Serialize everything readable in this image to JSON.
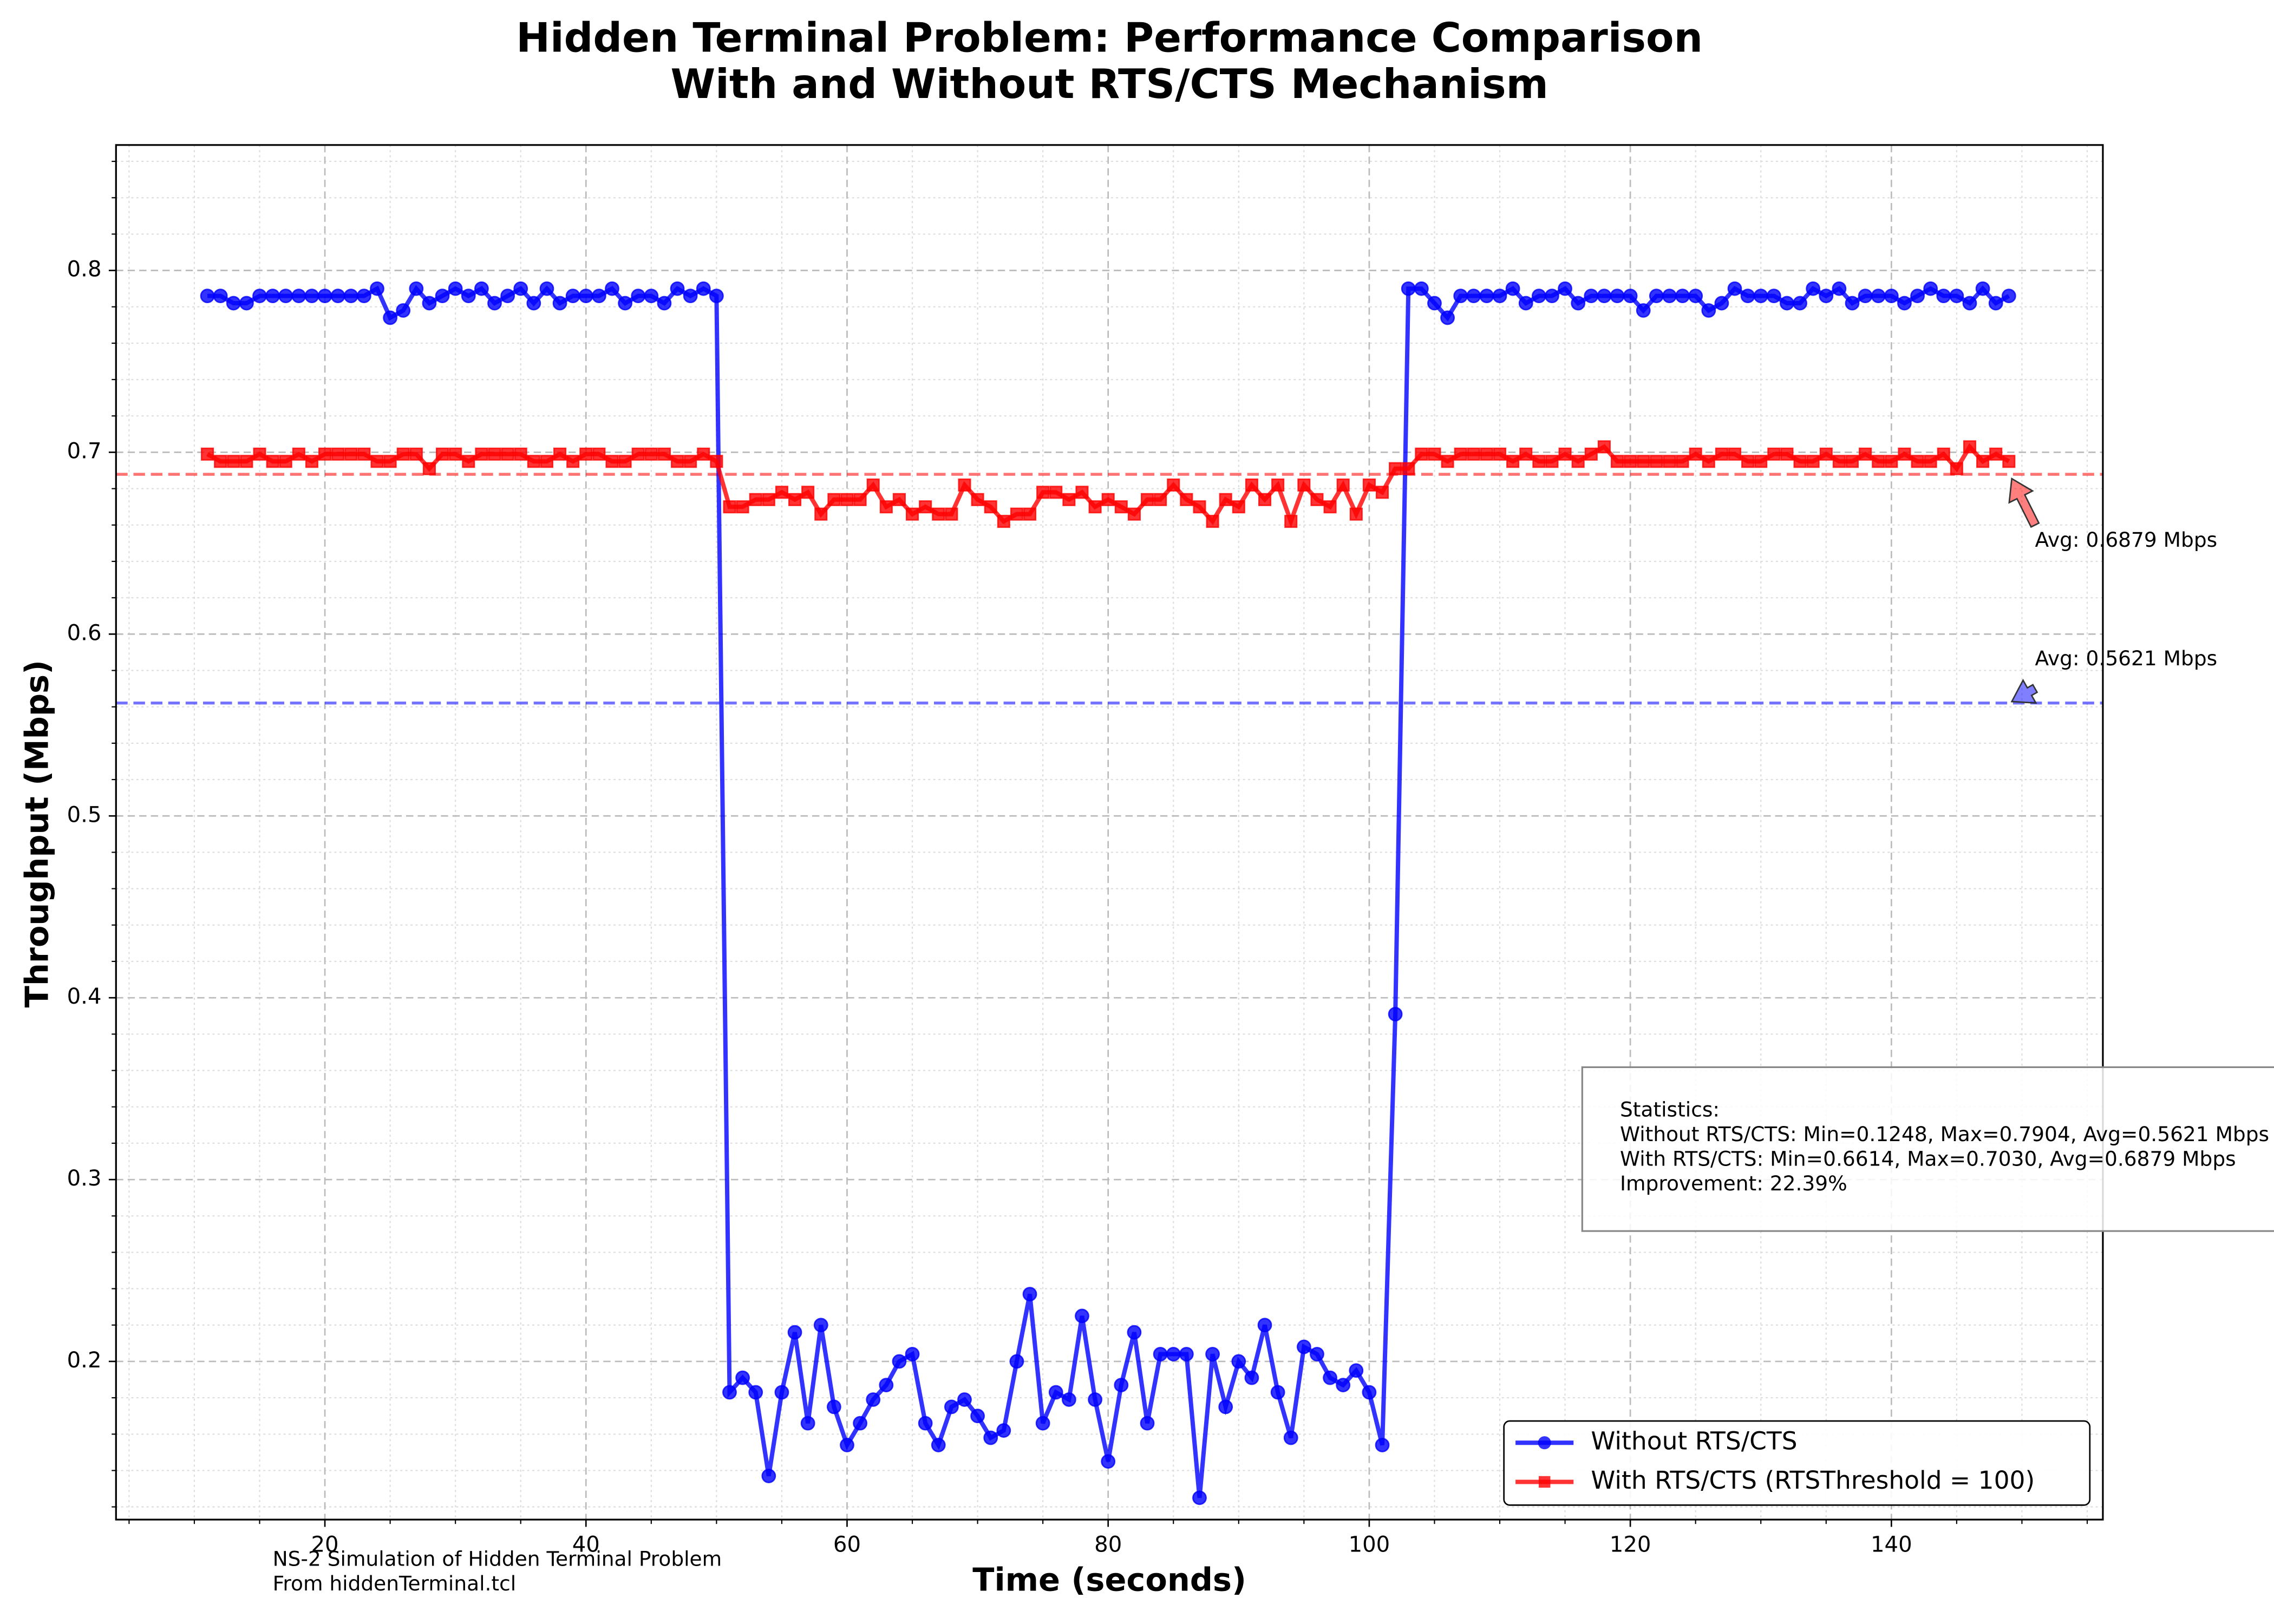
{
  "chart_data": {
    "type": "line",
    "title": [
      "Hidden Terminal Problem: Performance Comparison",
      "With and Without RTS/CTS Mechanism"
    ],
    "xlabel": "Time (seconds)",
    "ylabel": "Throughput (Mbps)",
    "xlim": [
      4.0,
      156.2
    ],
    "ylim": [
      0.113,
      0.869
    ],
    "xticks": [
      20,
      40,
      60,
      80,
      100,
      120,
      140
    ],
    "yticks": [
      0.2,
      0.3,
      0.4,
      0.5,
      0.6,
      0.7,
      0.8
    ],
    "xminorticks": [
      5,
      10,
      15,
      25,
      30,
      35,
      45,
      50,
      55,
      65,
      70,
      75,
      85,
      90,
      95,
      105,
      110,
      115,
      125,
      130,
      135,
      145,
      150,
      155
    ],
    "yminorticks": [
      0.12,
      0.14,
      0.16,
      0.18,
      0.22,
      0.24,
      0.26,
      0.28,
      0.32,
      0.34,
      0.36,
      0.38,
      0.42,
      0.44,
      0.46,
      0.48,
      0.52,
      0.54,
      0.56,
      0.58,
      0.62,
      0.64,
      0.66,
      0.68,
      0.72,
      0.74,
      0.76,
      0.78,
      0.82,
      0.84,
      0.86
    ],
    "grid": true,
    "legend": "lower right",
    "x": [
      11,
      12,
      13,
      14,
      15,
      16,
      17,
      18,
      19,
      20,
      21,
      22,
      23,
      24,
      25,
      26,
      27,
      28,
      29,
      30,
      31,
      32,
      33,
      34,
      35,
      36,
      37,
      38,
      39,
      40,
      41,
      42,
      43,
      44,
      45,
      46,
      47,
      48,
      49,
      50,
      51,
      52,
      53,
      54,
      55,
      56,
      57,
      58,
      59,
      60,
      61,
      62,
      63,
      64,
      65,
      66,
      67,
      68,
      69,
      70,
      71,
      72,
      73,
      74,
      75,
      76,
      77,
      78,
      79,
      80,
      81,
      82,
      83,
      84,
      85,
      86,
      87,
      88,
      89,
      90,
      91,
      92,
      93,
      94,
      95,
      96,
      97,
      98,
      99,
      100,
      101,
      102,
      103,
      104,
      105,
      106,
      107,
      108,
      109,
      110,
      111,
      112,
      113,
      114,
      115,
      116,
      117,
      118,
      119,
      120,
      121,
      122,
      123,
      124,
      125,
      126,
      127,
      128,
      129,
      130,
      131,
      132,
      133,
      134,
      135,
      136,
      137,
      138,
      139,
      140,
      141,
      142,
      143,
      144,
      145,
      146,
      147,
      148,
      149
    ],
    "series": [
      {
        "name": "Without RTS/CTS",
        "color": "#0000ff",
        "marker": "circle",
        "values": [
          0.786,
          0.786,
          0.782,
          0.782,
          0.786,
          0.786,
          0.786,
          0.786,
          0.786,
          0.786,
          0.786,
          0.786,
          0.786,
          0.79,
          0.774,
          0.778,
          0.79,
          0.782,
          0.786,
          0.79,
          0.786,
          0.79,
          0.782,
          0.786,
          0.79,
          0.782,
          0.79,
          0.782,
          0.786,
          0.786,
          0.786,
          0.79,
          0.782,
          0.786,
          0.786,
          0.782,
          0.79,
          0.786,
          0.79,
          0.786,
          0.183,
          0.191,
          0.183,
          0.137,
          0.183,
          0.216,
          0.166,
          0.22,
          0.175,
          0.154,
          0.166,
          0.179,
          0.187,
          0.2,
          0.204,
          0.166,
          0.154,
          0.175,
          0.179,
          0.17,
          0.158,
          0.162,
          0.2,
          0.237,
          0.166,
          0.183,
          0.179,
          0.225,
          0.179,
          0.145,
          0.187,
          0.216,
          0.166,
          0.204,
          0.204,
          0.204,
          0.125,
          0.204,
          0.175,
          0.2,
          0.191,
          0.22,
          0.183,
          0.158,
          0.208,
          0.204,
          0.191,
          0.187,
          0.195,
          0.183,
          0.154,
          0.391,
          0.79,
          0.79,
          0.782,
          0.774,
          0.786,
          0.786,
          0.786,
          0.786,
          0.79,
          0.782,
          0.786,
          0.786,
          0.79,
          0.782,
          0.786,
          0.786,
          0.786,
          0.786,
          0.778,
          0.786,
          0.786,
          0.786,
          0.786,
          0.778,
          0.782,
          0.79,
          0.786,
          0.786,
          0.786,
          0.782,
          0.782,
          0.79,
          0.786,
          0.79,
          0.782,
          0.786,
          0.786,
          0.786,
          0.782,
          0.786,
          0.79,
          0.786,
          0.786,
          0.782,
          0.79,
          0.782,
          0.786
        ]
      },
      {
        "name": "With RTS/CTS (RTSThreshold = 100)",
        "color": "#ff0000",
        "marker": "square",
        "values": [
          0.699,
          0.695,
          0.695,
          0.695,
          0.699,
          0.695,
          0.695,
          0.699,
          0.695,
          0.699,
          0.699,
          0.699,
          0.699,
          0.695,
          0.695,
          0.699,
          0.699,
          0.691,
          0.699,
          0.699,
          0.695,
          0.699,
          0.699,
          0.699,
          0.699,
          0.695,
          0.695,
          0.699,
          0.695,
          0.699,
          0.699,
          0.695,
          0.695,
          0.699,
          0.699,
          0.699,
          0.695,
          0.695,
          0.699,
          0.695,
          0.67,
          0.67,
          0.674,
          0.674,
          0.678,
          0.674,
          0.678,
          0.666,
          0.674,
          0.674,
          0.674,
          0.682,
          0.67,
          0.674,
          0.666,
          0.67,
          0.666,
          0.666,
          0.682,
          0.674,
          0.67,
          0.662,
          0.666,
          0.666,
          0.678,
          0.678,
          0.674,
          0.678,
          0.67,
          0.674,
          0.67,
          0.666,
          0.674,
          0.674,
          0.682,
          0.674,
          0.67,
          0.662,
          0.674,
          0.67,
          0.682,
          0.674,
          0.682,
          0.662,
          0.682,
          0.674,
          0.67,
          0.682,
          0.666,
          0.682,
          0.678,
          0.691,
          0.691,
          0.699,
          0.699,
          0.695,
          0.699,
          0.699,
          0.699,
          0.699,
          0.695,
          0.699,
          0.695,
          0.695,
          0.699,
          0.695,
          0.699,
          0.703,
          0.695,
          0.695,
          0.695,
          0.695,
          0.695,
          0.695,
          0.699,
          0.695,
          0.699,
          0.699,
          0.695,
          0.695,
          0.699,
          0.699,
          0.695,
          0.695,
          0.699,
          0.695,
          0.695,
          0.699,
          0.695,
          0.695,
          0.699,
          0.695,
          0.695,
          0.699,
          0.691,
          0.703,
          0.695,
          0.699,
          0.695
        ]
      }
    ],
    "hlines": [
      {
        "value": 0.6879,
        "color": "#ff0000",
        "label": "Avg: 0.6879 Mbps"
      },
      {
        "value": 0.5621,
        "color": "#0000ff",
        "label": "Avg: 0.5621 Mbps"
      }
    ],
    "stats_box": [
      "Statistics:",
      "Without RTS/CTS: Min=0.1248, Max=0.7904, Avg=0.5621 Mbps",
      "With RTS/CTS: Min=0.6614, Max=0.7030, Avg=0.6879 Mbps",
      "Improvement: 22.39%"
    ],
    "footnote": [
      "NS-2 Simulation of Hidden Terminal Problem",
      "From hiddenTerminal.tcl"
    ]
  }
}
